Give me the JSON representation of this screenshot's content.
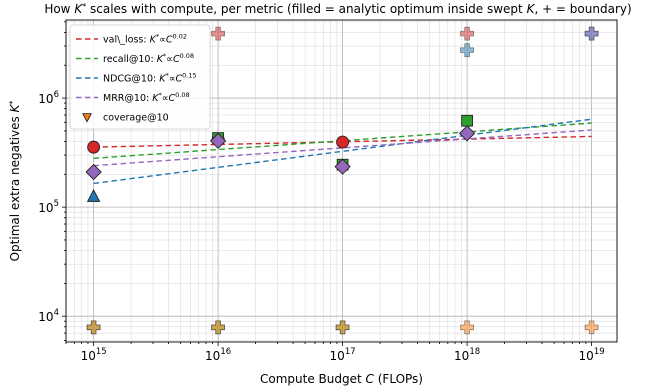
{
  "chart_data": {
    "type": "scatter",
    "title": "How K* scales with compute, per metric (filled = analytic optimum inside swept K, + = boundary)",
    "xlabel": "Compute Budget C (FLOPs)",
    "ylabel": "Optimal extra negatives K*",
    "x_scale": "log",
    "y_scale": "log",
    "xlim": [
      600000000000000.0,
      1.6e+19
    ],
    "ylim": [
      5800,
      5200000.0
    ],
    "x_ticks": [
      {
        "value": 1000000000000000.0,
        "exp": "15"
      },
      {
        "value": 1e+16,
        "exp": "16"
      },
      {
        "value": 1e+17,
        "exp": "17"
      },
      {
        "value": 1e+18,
        "exp": "18"
      },
      {
        "value": 1e+19,
        "exp": "19"
      }
    ],
    "y_ticks": [
      {
        "value": 10000.0,
        "exp": "4"
      },
      {
        "value": 100000.0,
        "exp": "5"
      },
      {
        "value": 1000000.0,
        "exp": "6"
      }
    ],
    "tick_base": "10",
    "grid": true,
    "legend_position": "top-left",
    "series": [
      {
        "name": "val\\_loss: K*∝C^0.02",
        "legend_prefix": "val\\_loss: ",
        "legend_exp": "0.02",
        "color": "#d62728",
        "marker": "circle",
        "fit": {
          "x": [
            1000000000000000.0,
            1e+19
          ],
          "y": [
            355000,
            445000
          ]
        },
        "points": [
          {
            "x": 1000000000000000.0,
            "y": 355000
          },
          {
            "x": 1e+16,
            "y": 420000
          },
          {
            "x": 1e+17,
            "y": 395000
          }
        ],
        "boundary": [
          {
            "x": 1e+16,
            "y": 3900000.0
          },
          {
            "x": 1e+18,
            "y": 3900000.0
          }
        ]
      },
      {
        "name": "recall@10: K*∝C^0.08",
        "legend_prefix": "recall@10: ",
        "legend_exp": "0.08",
        "color": "#2ca02c",
        "marker": "square",
        "fit": {
          "x": [
            1000000000000000.0,
            1e+19
          ],
          "y": [
            280000,
            590000
          ]
        },
        "points": [
          {
            "x": 1e+16,
            "y": 430000
          },
          {
            "x": 1e+17,
            "y": 245000
          },
          {
            "x": 1e+18,
            "y": 620000
          }
        ],
        "boundary": [
          {
            "x": 1000000000000000.0,
            "y": 7900
          },
          {
            "x": 1e+16,
            "y": 7900
          },
          {
            "x": 1e+17,
            "y": 7900
          }
        ]
      },
      {
        "name": "NDCG@10: K*∝C^0.15",
        "legend_prefix": "NDCG@10: ",
        "legend_exp": "0.15",
        "color": "#1f77b4",
        "marker": "triangle-up",
        "fit": {
          "x": [
            1000000000000000.0,
            1e+19
          ],
          "y": [
            165000,
            640000
          ]
        },
        "points": [
          {
            "x": 1000000000000000.0,
            "y": 125000
          }
        ],
        "boundary": [
          {
            "x": 1e+18,
            "y": 2750000.0
          },
          {
            "x": 1e+19,
            "y": 3900000.0
          }
        ]
      },
      {
        "name": "MRR@10: K*∝C^0.08",
        "legend_prefix": "MRR@10: ",
        "legend_exp": "0.08",
        "color": "#9467bd",
        "marker": "diamond",
        "fit": {
          "x": [
            1000000000000000.0,
            1e+19
          ],
          "y": [
            240000,
            510000
          ]
        },
        "points": [
          {
            "x": 1000000000000000.0,
            "y": 210000
          },
          {
            "x": 1e+16,
            "y": 405000
          },
          {
            "x": 1e+17,
            "y": 235000
          },
          {
            "x": 1e+18,
            "y": 475000
          }
        ],
        "boundary": [
          {
            "x": 1e+19,
            "y": 3900000.0
          }
        ]
      },
      {
        "name": "coverage@10",
        "color": "#ff7f0e",
        "marker": "triangle-down",
        "fit": null,
        "points": [],
        "boundary": [
          {
            "x": 1000000000000000.0,
            "y": 7900
          },
          {
            "x": 1e+16,
            "y": 7900
          },
          {
            "x": 1e+17,
            "y": 7900
          },
          {
            "x": 1e+18,
            "y": 7900
          },
          {
            "x": 1e+19,
            "y": 7900
          }
        ]
      }
    ]
  }
}
